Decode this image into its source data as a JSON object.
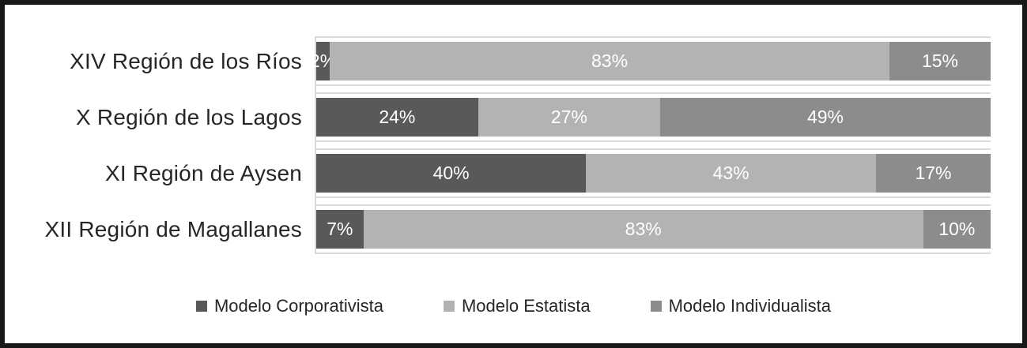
{
  "chart_data": {
    "type": "bar",
    "orientation": "horizontal",
    "stacked": true,
    "categories": [
      "XIV Región de los Ríos",
      "X Región de los Lagos",
      "XI Región de Aysen",
      "XII Región de Magallanes"
    ],
    "series": [
      {
        "name": "Modelo Corporativista",
        "color": "#595959",
        "values": [
          2,
          24,
          40,
          7
        ],
        "labels": [
          "2%",
          "24%",
          "40%",
          "7%"
        ]
      },
      {
        "name": "Modelo Estatista",
        "color": "#b3b3b3",
        "values": [
          83,
          27,
          43,
          83
        ],
        "labels": [
          "83%",
          "27%",
          "43%",
          "83%"
        ]
      },
      {
        "name": "Modelo Individualista",
        "color": "#8c8c8c",
        "values": [
          15,
          49,
          17,
          10
        ],
        "labels": [
          "15%",
          "49%",
          "17%",
          "10%"
        ]
      }
    ],
    "xlim": [
      0,
      100
    ],
    "value_label_color": "#ffffff",
    "gridline_color": "#d9d9d9",
    "legend_position": "bottom",
    "title": "",
    "xlabel": "",
    "ylabel": ""
  },
  "colors": {
    "frame_border": "#181818",
    "axis_line": "#d9d9d9",
    "category_text": "#262626",
    "legend_text": "#262626"
  }
}
